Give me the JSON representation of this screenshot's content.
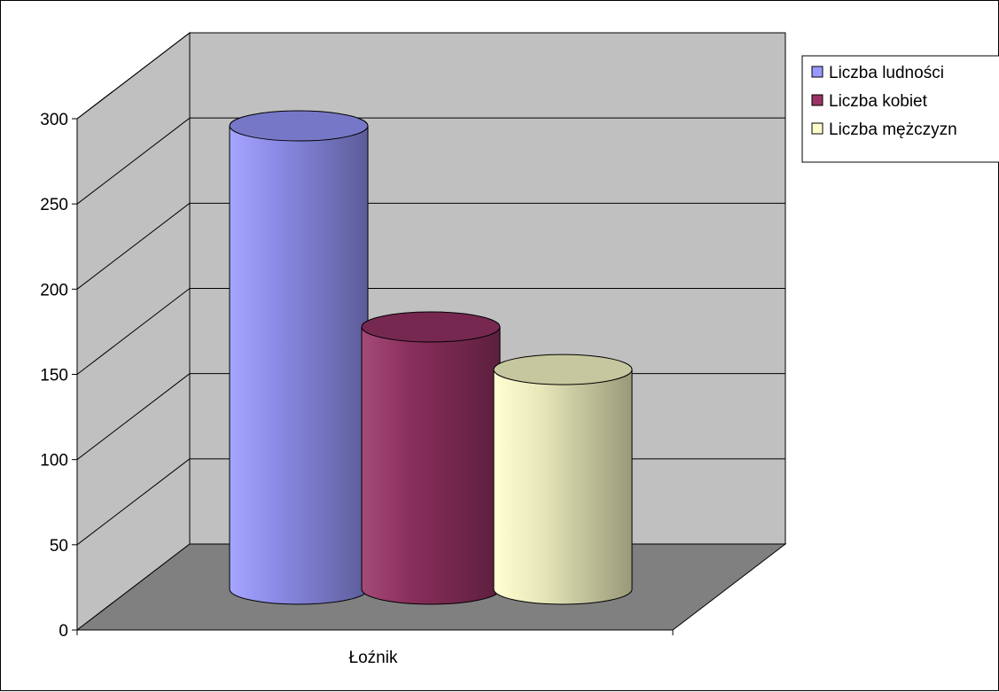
{
  "chart_data": {
    "type": "bar",
    "style": "3d-cylinder",
    "categories": [
      "Łoźnik"
    ],
    "series": [
      {
        "name": "Liczba ludności",
        "values": [
          268
        ],
        "color": "#9999ff"
      },
      {
        "name": "Liczba kobiet",
        "values": [
          150
        ],
        "color": "#993366"
      },
      {
        "name": "Liczba mężczyzn",
        "values": [
          125
        ],
        "color": "#ffffcc"
      }
    ],
    "yticks": [
      "0",
      "50",
      "100",
      "150",
      "200",
      "250",
      "300"
    ],
    "ylim": [
      0,
      300
    ],
    "grid": true,
    "legend_position": "top-right",
    "wall_color": "#c0c0c0",
    "floor_color": "#808080"
  }
}
